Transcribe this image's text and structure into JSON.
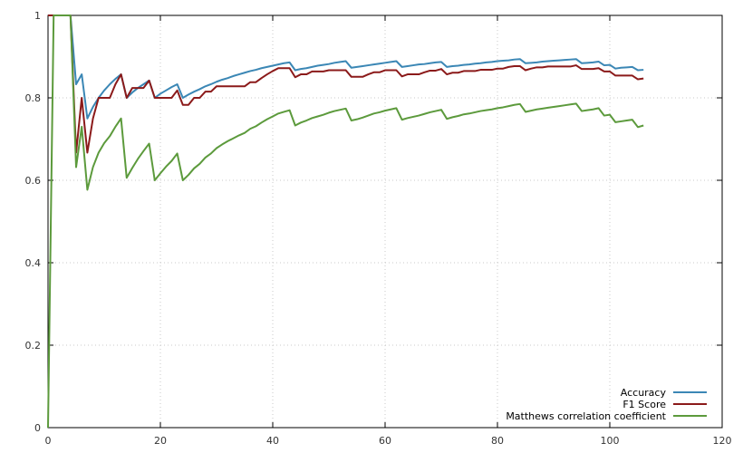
{
  "chart_data": {
    "type": "line",
    "title": "",
    "xlabel": "",
    "ylabel": "",
    "xlim": [
      0,
      120
    ],
    "ylim": [
      0,
      1
    ],
    "x_ticks": [
      "0",
      "20",
      "40",
      "60",
      "80",
      "100",
      "120"
    ],
    "y_ticks": [
      "0",
      "0.2",
      "0.4",
      "0.6",
      "0.8",
      "1"
    ],
    "grid": true,
    "legend_position": "bottom-right",
    "series": [
      {
        "name": "Accuracy",
        "color": "#3b87b5",
        "points": [
          [
            0,
            1
          ],
          [
            1,
            1
          ],
          [
            2,
            1
          ],
          [
            3,
            1
          ],
          [
            4,
            1
          ],
          [
            5,
            0.833
          ],
          [
            6,
            0.857
          ],
          [
            7,
            0.75
          ],
          [
            8,
            0.778
          ],
          [
            9,
            0.8
          ],
          [
            10,
            0.818
          ],
          [
            11,
            0.833
          ],
          [
            12,
            0.846
          ],
          [
            13,
            0.857
          ],
          [
            14,
            0.8
          ],
          [
            15,
            0.813
          ],
          [
            16,
            0.824
          ],
          [
            17,
            0.833
          ],
          [
            18,
            0.842
          ],
          [
            19,
            0.8
          ],
          [
            20,
            0.81
          ],
          [
            21,
            0.818
          ],
          [
            22,
            0.826
          ],
          [
            23,
            0.833
          ],
          [
            24,
            0.8
          ],
          [
            25,
            0.808
          ],
          [
            26,
            0.815
          ],
          [
            27,
            0.821
          ],
          [
            28,
            0.828
          ],
          [
            29,
            0.833
          ],
          [
            30,
            0.839
          ],
          [
            31,
            0.844
          ],
          [
            32,
            0.848
          ],
          [
            33,
            0.853
          ],
          [
            34,
            0.857
          ],
          [
            35,
            0.861
          ],
          [
            36,
            0.865
          ],
          [
            37,
            0.868
          ],
          [
            38,
            0.872
          ],
          [
            39,
            0.875
          ],
          [
            40,
            0.878
          ],
          [
            41,
            0.881
          ],
          [
            42,
            0.884
          ],
          [
            43,
            0.886
          ],
          [
            44,
            0.867
          ],
          [
            45,
            0.87
          ],
          [
            46,
            0.872
          ],
          [
            47,
            0.875
          ],
          [
            48,
            0.878
          ],
          [
            49,
            0.88
          ],
          [
            50,
            0.882
          ],
          [
            51,
            0.885
          ],
          [
            52,
            0.887
          ],
          [
            53,
            0.889
          ],
          [
            54,
            0.873
          ],
          [
            55,
            0.875
          ],
          [
            56,
            0.877
          ],
          [
            57,
            0.879
          ],
          [
            58,
            0.881
          ],
          [
            59,
            0.883
          ],
          [
            60,
            0.885
          ],
          [
            61,
            0.887
          ],
          [
            62,
            0.889
          ],
          [
            63,
            0.875
          ],
          [
            64,
            0.877
          ],
          [
            65,
            0.879
          ],
          [
            66,
            0.881
          ],
          [
            67,
            0.882
          ],
          [
            68,
            0.884
          ],
          [
            69,
            0.886
          ],
          [
            70,
            0.887
          ],
          [
            71,
            0.875
          ],
          [
            72,
            0.877
          ],
          [
            73,
            0.878
          ],
          [
            74,
            0.88
          ],
          [
            75,
            0.881
          ],
          [
            76,
            0.883
          ],
          [
            77,
            0.884
          ],
          [
            78,
            0.886
          ],
          [
            79,
            0.887
          ],
          [
            80,
            0.889
          ],
          [
            81,
            0.89
          ],
          [
            82,
            0.891
          ],
          [
            83,
            0.893
          ],
          [
            84,
            0.894
          ],
          [
            85,
            0.884
          ],
          [
            86,
            0.885
          ],
          [
            87,
            0.886
          ],
          [
            88,
            0.888
          ],
          [
            89,
            0.889
          ],
          [
            90,
            0.89
          ],
          [
            91,
            0.891
          ],
          [
            92,
            0.892
          ],
          [
            93,
            0.893
          ],
          [
            94,
            0.894
          ],
          [
            95,
            0.884
          ],
          [
            96,
            0.885
          ],
          [
            97,
            0.886
          ],
          [
            98,
            0.888
          ],
          [
            99,
            0.879
          ],
          [
            100,
            0.88
          ],
          [
            101,
            0.871
          ],
          [
            102,
            0.873
          ],
          [
            103,
            0.874
          ],
          [
            104,
            0.875
          ],
          [
            105,
            0.867
          ],
          [
            106,
            0.868
          ]
        ]
      },
      {
        "name": "F1 Score",
        "color": "#8b1a1a",
        "points": [
          [
            0,
            1
          ],
          [
            1,
            1
          ],
          [
            2,
            1
          ],
          [
            3,
            1
          ],
          [
            4,
            1
          ],
          [
            5,
            0.667
          ],
          [
            6,
            0.8
          ],
          [
            7,
            0.667
          ],
          [
            8,
            0.75
          ],
          [
            9,
            0.8
          ],
          [
            10,
            0.8
          ],
          [
            11,
            0.8
          ],
          [
            12,
            0.833
          ],
          [
            13,
            0.857
          ],
          [
            14,
            0.8
          ],
          [
            15,
            0.824
          ],
          [
            16,
            0.824
          ],
          [
            17,
            0.824
          ],
          [
            18,
            0.842
          ],
          [
            19,
            0.8
          ],
          [
            20,
            0.8
          ],
          [
            21,
            0.8
          ],
          [
            22,
            0.8
          ],
          [
            23,
            0.818
          ],
          [
            24,
            0.783
          ],
          [
            25,
            0.783
          ],
          [
            26,
            0.8
          ],
          [
            27,
            0.8
          ],
          [
            28,
            0.815
          ],
          [
            29,
            0.815
          ],
          [
            30,
            0.828
          ],
          [
            31,
            0.828
          ],
          [
            32,
            0.828
          ],
          [
            33,
            0.828
          ],
          [
            34,
            0.828
          ],
          [
            35,
            0.828
          ],
          [
            36,
            0.838
          ],
          [
            37,
            0.838
          ],
          [
            38,
            0.848
          ],
          [
            39,
            0.857
          ],
          [
            40,
            0.865
          ],
          [
            41,
            0.872
          ],
          [
            42,
            0.872
          ],
          [
            43,
            0.872
          ],
          [
            44,
            0.85
          ],
          [
            45,
            0.857
          ],
          [
            46,
            0.857
          ],
          [
            47,
            0.864
          ],
          [
            48,
            0.864
          ],
          [
            49,
            0.864
          ],
          [
            50,
            0.867
          ],
          [
            51,
            0.867
          ],
          [
            52,
            0.867
          ],
          [
            53,
            0.867
          ],
          [
            54,
            0.851
          ],
          [
            55,
            0.851
          ],
          [
            56,
            0.851
          ],
          [
            57,
            0.857
          ],
          [
            58,
            0.862
          ],
          [
            59,
            0.862
          ],
          [
            60,
            0.867
          ],
          [
            61,
            0.867
          ],
          [
            62,
            0.867
          ],
          [
            63,
            0.852
          ],
          [
            64,
            0.857
          ],
          [
            65,
            0.857
          ],
          [
            66,
            0.857
          ],
          [
            67,
            0.862
          ],
          [
            68,
            0.866
          ],
          [
            69,
            0.866
          ],
          [
            70,
            0.87
          ],
          [
            71,
            0.857
          ],
          [
            72,
            0.861
          ],
          [
            73,
            0.861
          ],
          [
            74,
            0.865
          ],
          [
            75,
            0.865
          ],
          [
            76,
            0.865
          ],
          [
            77,
            0.868
          ],
          [
            78,
            0.868
          ],
          [
            79,
            0.868
          ],
          [
            80,
            0.871
          ],
          [
            81,
            0.871
          ],
          [
            82,
            0.875
          ],
          [
            83,
            0.877
          ],
          [
            84,
            0.877
          ],
          [
            85,
            0.867
          ],
          [
            86,
            0.871
          ],
          [
            87,
            0.874
          ],
          [
            88,
            0.874
          ],
          [
            89,
            0.876
          ],
          [
            90,
            0.876
          ],
          [
            91,
            0.876
          ],
          [
            92,
            0.876
          ],
          [
            93,
            0.876
          ],
          [
            94,
            0.879
          ],
          [
            95,
            0.87
          ],
          [
            96,
            0.87
          ],
          [
            97,
            0.87
          ],
          [
            98,
            0.872
          ],
          [
            99,
            0.864
          ],
          [
            100,
            0.864
          ],
          [
            101,
            0.854
          ],
          [
            102,
            0.854
          ],
          [
            103,
            0.854
          ],
          [
            104,
            0.854
          ],
          [
            105,
            0.845
          ],
          [
            106,
            0.847
          ]
        ]
      },
      {
        "name": "Matthews correlation coefficient",
        "color": "#5c9a3c",
        "points": [
          [
            0,
            0
          ],
          [
            1,
            1
          ],
          [
            2,
            1
          ],
          [
            3,
            1
          ],
          [
            4,
            1
          ],
          [
            5,
            0.632
          ],
          [
            6,
            0.73
          ],
          [
            7,
            0.577
          ],
          [
            8,
            0.632
          ],
          [
            9,
            0.667
          ],
          [
            10,
            0.69
          ],
          [
            11,
            0.707
          ],
          [
            12,
            0.73
          ],
          [
            13,
            0.75
          ],
          [
            14,
            0.606
          ],
          [
            15,
            0.63
          ],
          [
            16,
            0.652
          ],
          [
            17,
            0.671
          ],
          [
            18,
            0.689
          ],
          [
            19,
            0.6
          ],
          [
            20,
            0.617
          ],
          [
            21,
            0.633
          ],
          [
            22,
            0.647
          ],
          [
            23,
            0.665
          ],
          [
            24,
            0.6
          ],
          [
            25,
            0.613
          ],
          [
            26,
            0.629
          ],
          [
            27,
            0.64
          ],
          [
            28,
            0.655
          ],
          [
            29,
            0.665
          ],
          [
            30,
            0.678
          ],
          [
            31,
            0.687
          ],
          [
            32,
            0.695
          ],
          [
            33,
            0.702
          ],
          [
            34,
            0.709
          ],
          [
            35,
            0.715
          ],
          [
            36,
            0.725
          ],
          [
            37,
            0.731
          ],
          [
            38,
            0.74
          ],
          [
            39,
            0.748
          ],
          [
            40,
            0.755
          ],
          [
            41,
            0.762
          ],
          [
            42,
            0.766
          ],
          [
            43,
            0.77
          ],
          [
            44,
            0.733
          ],
          [
            45,
            0.74
          ],
          [
            46,
            0.745
          ],
          [
            47,
            0.751
          ],
          [
            48,
            0.755
          ],
          [
            49,
            0.759
          ],
          [
            50,
            0.764
          ],
          [
            51,
            0.768
          ],
          [
            52,
            0.771
          ],
          [
            53,
            0.774
          ],
          [
            54,
            0.745
          ],
          [
            55,
            0.748
          ],
          [
            56,
            0.752
          ],
          [
            57,
            0.757
          ],
          [
            58,
            0.762
          ],
          [
            59,
            0.765
          ],
          [
            60,
            0.769
          ],
          [
            61,
            0.772
          ],
          [
            62,
            0.775
          ],
          [
            63,
            0.747
          ],
          [
            64,
            0.751
          ],
          [
            65,
            0.754
          ],
          [
            66,
            0.757
          ],
          [
            67,
            0.761
          ],
          [
            68,
            0.765
          ],
          [
            69,
            0.768
          ],
          [
            70,
            0.771
          ],
          [
            71,
            0.749
          ],
          [
            72,
            0.753
          ],
          [
            73,
            0.756
          ],
          [
            74,
            0.76
          ],
          [
            75,
            0.762
          ],
          [
            76,
            0.765
          ],
          [
            77,
            0.768
          ],
          [
            78,
            0.77
          ],
          [
            79,
            0.772
          ],
          [
            80,
            0.775
          ],
          [
            81,
            0.777
          ],
          [
            82,
            0.78
          ],
          [
            83,
            0.783
          ],
          [
            84,
            0.785
          ],
          [
            85,
            0.766
          ],
          [
            86,
            0.769
          ],
          [
            87,
            0.772
          ],
          [
            88,
            0.774
          ],
          [
            89,
            0.776
          ],
          [
            90,
            0.778
          ],
          [
            91,
            0.78
          ],
          [
            92,
            0.782
          ],
          [
            93,
            0.784
          ],
          [
            94,
            0.786
          ],
          [
            95,
            0.768
          ],
          [
            96,
            0.77
          ],
          [
            97,
            0.772
          ],
          [
            98,
            0.775
          ],
          [
            99,
            0.757
          ],
          [
            100,
            0.759
          ],
          [
            101,
            0.741
          ],
          [
            102,
            0.743
          ],
          [
            103,
            0.745
          ],
          [
            104,
            0.747
          ],
          [
            105,
            0.729
          ],
          [
            106,
            0.733
          ]
        ]
      }
    ]
  }
}
